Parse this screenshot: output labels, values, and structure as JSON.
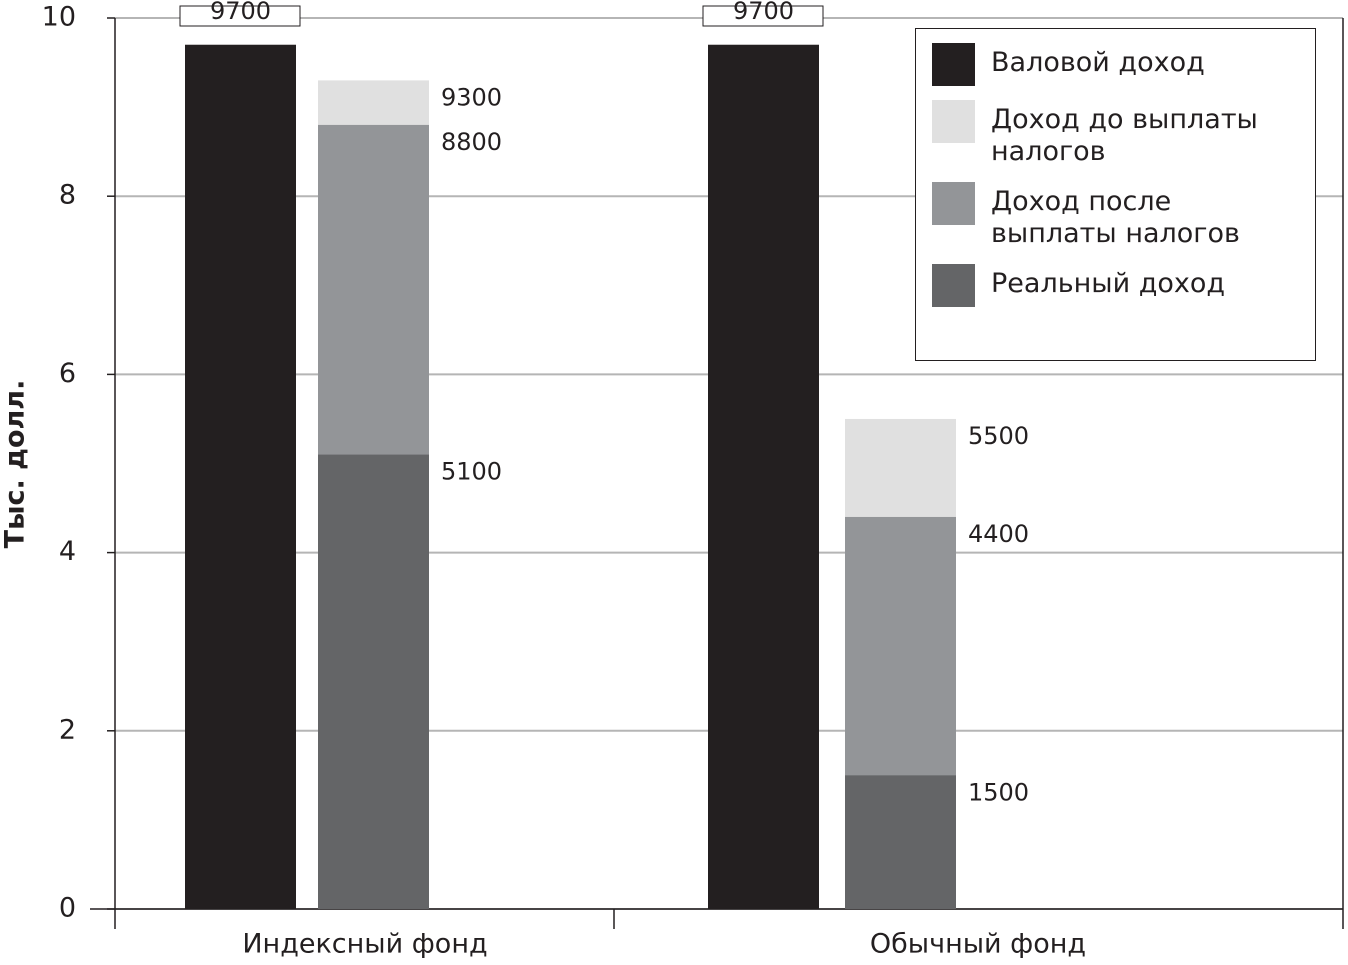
{
  "chart_data": {
    "type": "bar",
    "y_label": "Тыс. долл.",
    "categories": [
      "Индексный фонд",
      "Обычный фонд"
    ],
    "series": [
      {
        "name": "Валовой доход",
        "color": "#231f20",
        "values": [
          9.7,
          9.7
        ],
        "value_labels": [
          "9700",
          "9700"
        ]
      },
      {
        "name": "Доход до выплаты налогов",
        "color": "#e0e0e0",
        "values": [
          9.3,
          5.5
        ],
        "value_labels": [
          "9300",
          "5500"
        ]
      },
      {
        "name": "Доход после выплаты налогов",
        "color": "#939598",
        "values": [
          8.8,
          4.4
        ],
        "value_labels": [
          "8800",
          "4400"
        ]
      },
      {
        "name": "Реальный доход",
        "color": "#646567",
        "values": [
          5.1,
          1.5
        ],
        "value_labels": [
          "5100",
          "1500"
        ]
      }
    ],
    "ylim": [
      0,
      10
    ],
    "yticks": [
      0,
      2,
      4,
      6,
      8,
      10
    ],
    "grid": true,
    "legend": "upper right"
  }
}
